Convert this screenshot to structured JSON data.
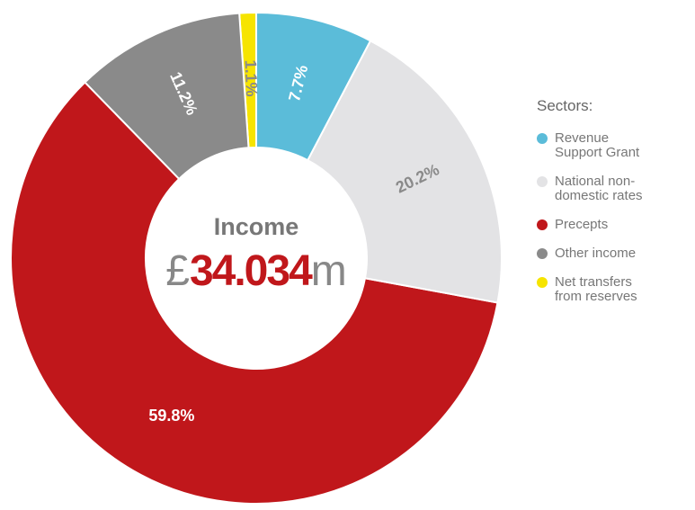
{
  "chart_data": {
    "type": "donut",
    "center_label": "Income",
    "total": {
      "currency": "£",
      "value": 34.034,
      "unit": "m"
    },
    "legend_title": "Sectors:",
    "legend": "right",
    "categories": [
      "Revenue Support Grant",
      "National non-domestic rates",
      "Precepts",
      "Other income",
      "Net transfers from reserves"
    ],
    "values": [
      7.7,
      20.2,
      59.8,
      11.2,
      1.1
    ],
    "value_labels": [
      "7.7%",
      "20.2%",
      "59.8%",
      "11.2%",
      "1.1%"
    ],
    "colors": [
      "#5bbcd9",
      "#e3e3e5",
      "#c0171b",
      "#8a8a8a",
      "#f6e400"
    ],
    "total_color": "#c0171b"
  }
}
